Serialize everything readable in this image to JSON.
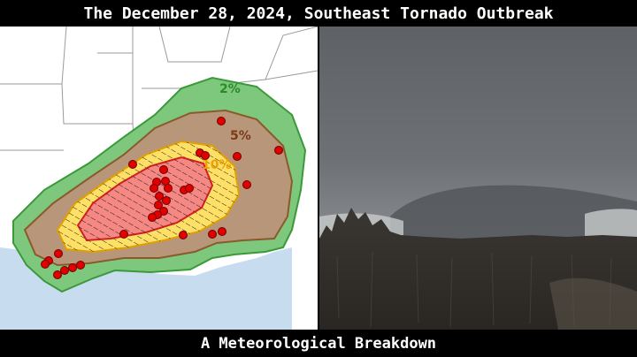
{
  "header": {
    "title": "The December 28, 2024, Southeast Tornado Outbreak"
  },
  "footer": {
    "subtitle": "A Meteorological Breakdown"
  },
  "map": {
    "risk_labels": {
      "two_percent": "2%",
      "five_percent": "5%",
      "ten_percent": "10%"
    },
    "colors": {
      "two_percent": "#7ec87e",
      "five_percent": "#b8967a",
      "ten_percent": "#ffe066",
      "fifteen_percent": "#f47e86",
      "report_dot": "#e00000",
      "gulf": "#c8dcf0"
    }
  },
  "photo": {
    "subject": "storm-sky-icon"
  }
}
